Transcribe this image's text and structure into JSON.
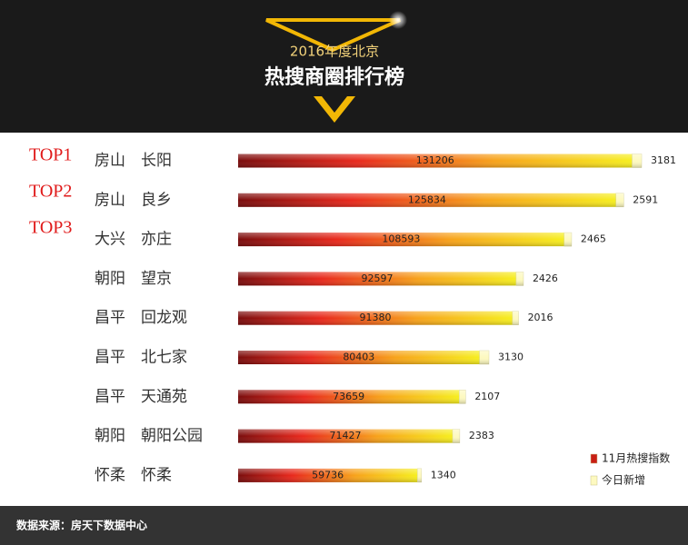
{
  "chart_data": {
    "type": "stacked-hbar",
    "title": "2016年度北京",
    "subtitle": "热搜商圈排行榜",
    "rank_labels": [
      "TOP1",
      "TOP2",
      "TOP3"
    ],
    "districts": [
      "房山",
      "房山",
      "大兴",
      "朝阳",
      "昌平",
      "昌平",
      "昌平",
      "朝阳",
      "怀柔"
    ],
    "categories": [
      "长阳",
      "良乡",
      "亦庄",
      "望京",
      "回龙观",
      "北七家",
      "天通苑",
      "朝阳公园",
      "怀柔"
    ],
    "series": [
      {
        "name": "11月热搜指数",
        "color": "#e8281c",
        "values": [
          131206,
          125834,
          108593,
          92597,
          91380,
          80403,
          73659,
          71427,
          59736
        ]
      },
      {
        "name": "今日新增",
        "color": "#fdf9c0",
        "values": [
          3181,
          2591,
          2465,
          2426,
          2016,
          3130,
          2107,
          2383,
          1340
        ]
      }
    ],
    "legend": "lower-right",
    "source": "数据来源：房天下数据中心"
  }
}
